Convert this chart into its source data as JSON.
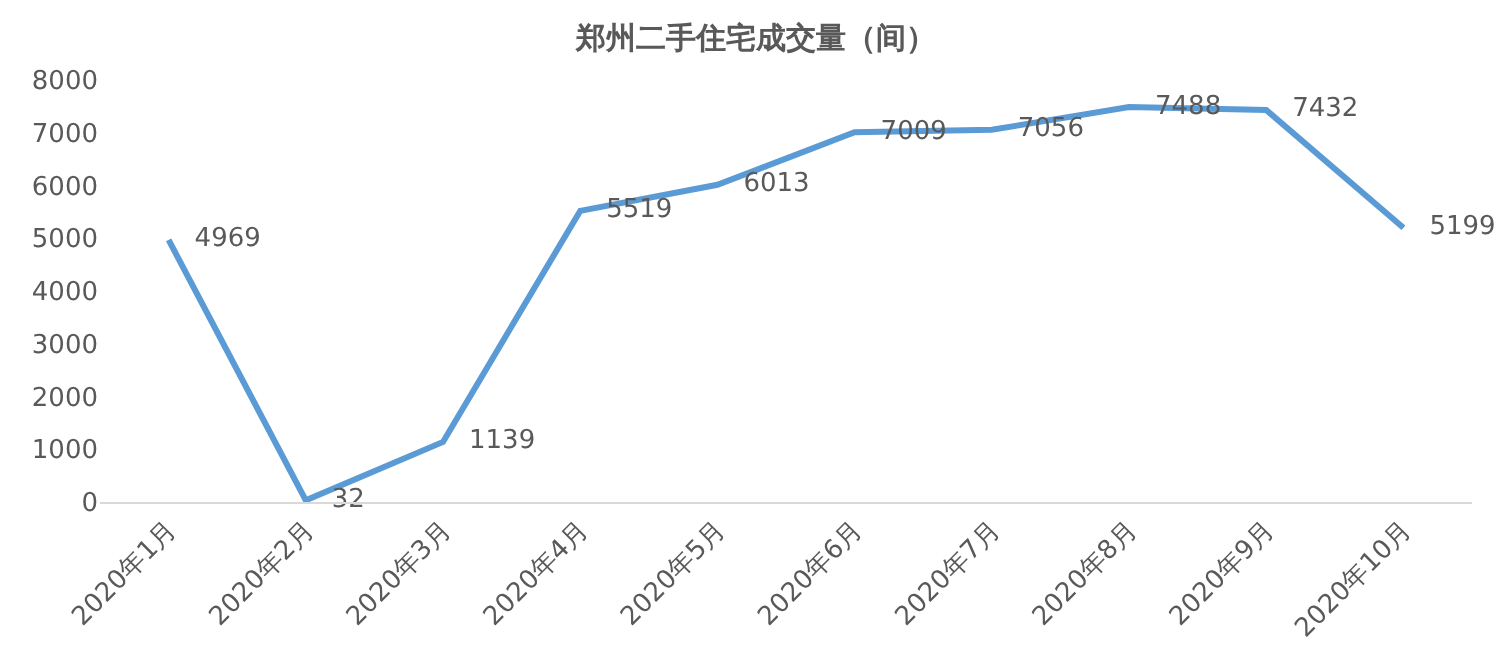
{
  "chart_data": {
    "type": "line",
    "title": "郑州二手住宅成交量（间）",
    "categories": [
      "2020年1月",
      "2020年2月",
      "2020年3月",
      "2020年4月",
      "2020年5月",
      "2020年6月",
      "2020年7月",
      "2020年8月",
      "2020年9月",
      "2020年10月"
    ],
    "series": [
      {
        "color": "#5b9bd5",
        "values": [
          4969,
          32,
          1139,
          5519,
          6013,
          7009,
          7056,
          7488,
          7432,
          5199
        ]
      }
    ],
    "ylim": [
      0,
      8000
    ],
    "yticks": [
      0,
      1000,
      2000,
      3000,
      4000,
      5000,
      6000,
      7000,
      8000
    ],
    "data_labels": true,
    "grid": false,
    "marker": "none",
    "line_style": "solid"
  }
}
